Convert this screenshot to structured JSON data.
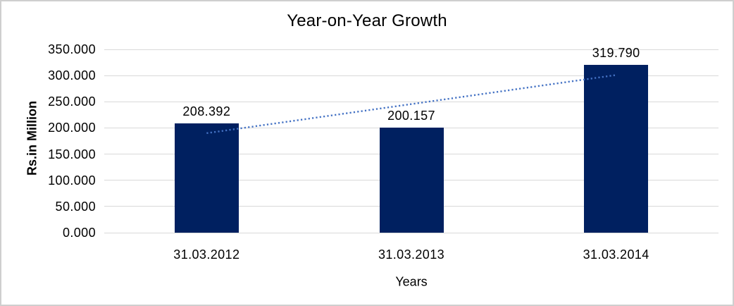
{
  "chart_data": {
    "type": "bar",
    "title": "Year-on-Year Growth",
    "xlabel": "Years",
    "ylabel": "Rs.in Million",
    "categories": [
      "31.03.2012",
      "31.03.2013",
      "31.03.2014"
    ],
    "values": [
      208.392,
      200.157,
      319.79
    ],
    "value_labels": [
      "208.392",
      "200.157",
      "319.790"
    ],
    "ylim": [
      0,
      350
    ],
    "ytick_step": 50,
    "ytick_labels": [
      "0.000",
      "50.000",
      "100.000",
      "150.000",
      "200.000",
      "250.000",
      "300.000",
      "350.000"
    ],
    "grid": true,
    "legend_position": "none",
    "colors": {
      "bar": "#002060",
      "trendline": "#4472c4",
      "gridline": "#d9d9d9",
      "frame_border": "#cfcfcf",
      "text": "#000000"
    },
    "trendline": {
      "type": "linear",
      "style": "dotted",
      "start_value": 190,
      "end_value": 301,
      "start_category_index": 0,
      "end_category_index": 2
    }
  }
}
